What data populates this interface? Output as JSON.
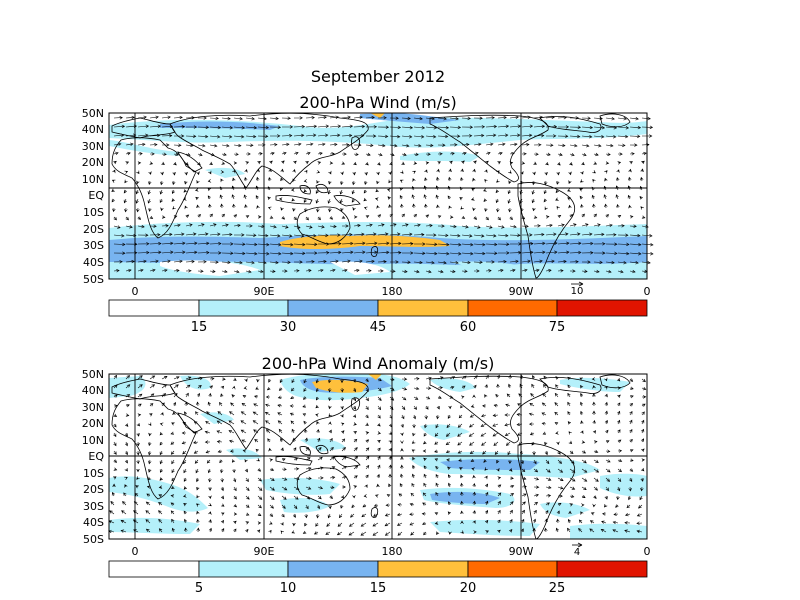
{
  "figure": {
    "title_line1": "September 2012",
    "panel1_title": "200-hPa Wind (m/s)",
    "panel2_title": "200-hPa Wind Anomaly (m/s)"
  },
  "lat_labels": [
    "50N",
    "40N",
    "30N",
    "20N",
    "10N",
    "EQ",
    "10S",
    "20S",
    "30S",
    "40S",
    "50S"
  ],
  "lon_labels": [
    "0",
    "90E",
    "180",
    "90W",
    "0"
  ],
  "panel1": {
    "vector_reference": "10",
    "colorbar": {
      "colors": [
        "#ffffff",
        "#b4f0fa",
        "#78b4f0",
        "#ffc03c",
        "#ff6a00",
        "#e11400"
      ],
      "labels": [
        "15",
        "30",
        "45",
        "60",
        "75"
      ]
    }
  },
  "panel2": {
    "vector_reference": "4",
    "colorbar": {
      "colors": [
        "#ffffff",
        "#b4f0fa",
        "#78b4f0",
        "#ffc03c",
        "#ff6a00",
        "#e11400"
      ],
      "labels": [
        "5",
        "10",
        "15",
        "20",
        "25"
      ]
    }
  },
  "colors": {
    "light_blue": "#b4f0fa",
    "mid_blue": "#78b4f0",
    "orange": "#ffc03c"
  }
}
